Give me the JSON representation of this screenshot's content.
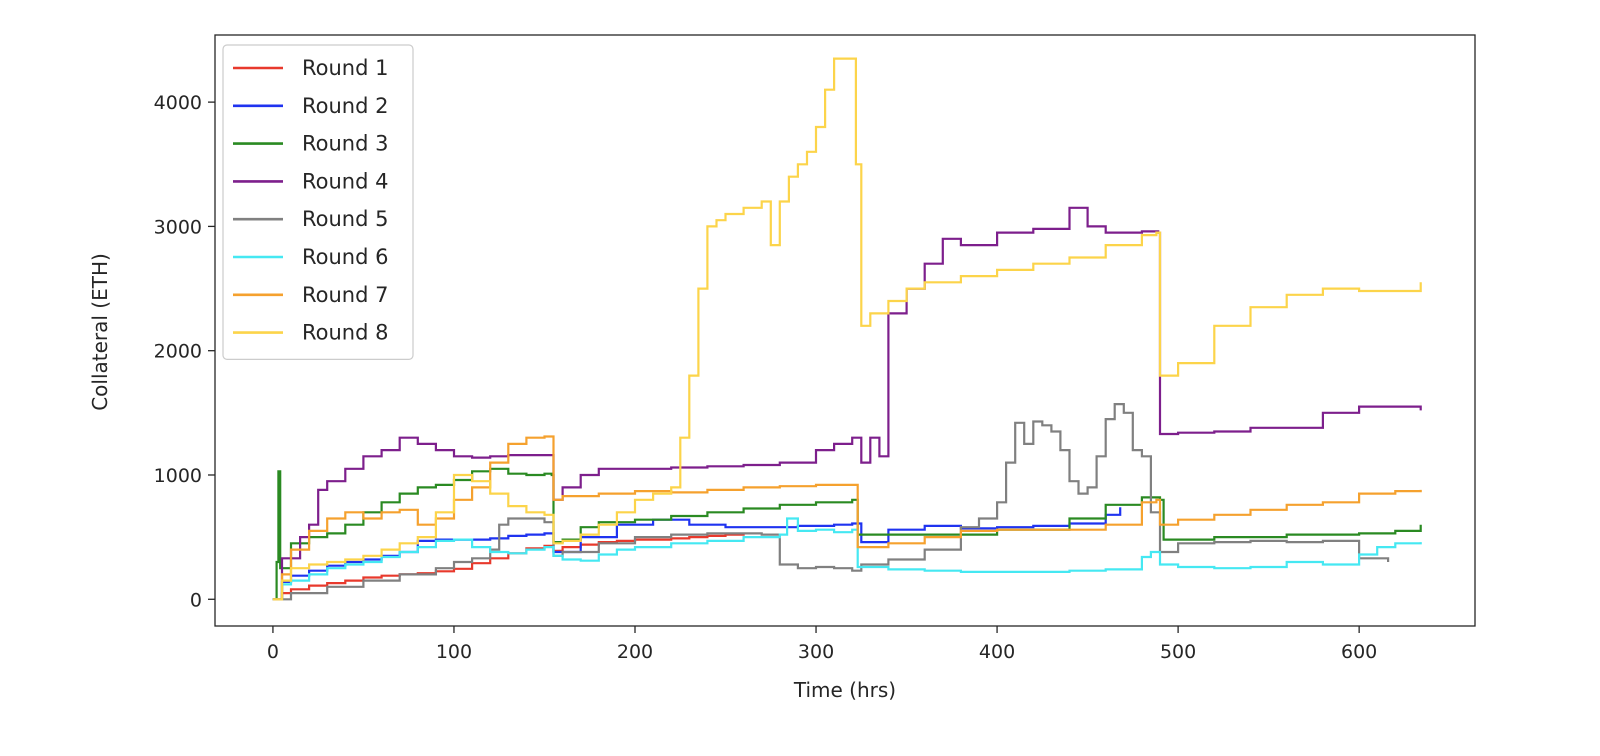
{
  "chart_data": {
    "type": "line",
    "title": "",
    "xlabel": "Time (hrs)",
    "ylabel": "Collateral (ETH)",
    "xlim": [
      -32,
      664
    ],
    "ylim": [
      -215,
      4540
    ],
    "xticks": [
      0,
      100,
      200,
      300,
      400,
      500,
      600
    ],
    "yticks": [
      0,
      1000,
      2000,
      3000,
      4000
    ],
    "grid": false,
    "legend_position": "top-left",
    "series": [
      {
        "name": "Round 1",
        "color": "#e8392c",
        "x": [
          0,
          5,
          10,
          20,
          30,
          40,
          50,
          60,
          70,
          80,
          90,
          100,
          110,
          120,
          130,
          140,
          150,
          155,
          160,
          170,
          180,
          190,
          200,
          210,
          220,
          230,
          240,
          250,
          260
        ],
        "y": [
          0,
          50,
          80,
          110,
          130,
          150,
          175,
          190,
          200,
          210,
          225,
          245,
          290,
          330,
          370,
          410,
          430,
          390,
          420,
          440,
          460,
          470,
          480,
          480,
          490,
          500,
          510,
          520,
          530
        ]
      },
      {
        "name": "Round 2",
        "color": "#1f33f0",
        "x": [
          0,
          5,
          10,
          20,
          30,
          40,
          50,
          60,
          70,
          80,
          90,
          100,
          110,
          120,
          130,
          140,
          150,
          155,
          170,
          190,
          210,
          230,
          250,
          270,
          290,
          310,
          320,
          325,
          340,
          360,
          380,
          400,
          420,
          440,
          460,
          468
        ],
        "y": [
          0,
          140,
          190,
          230,
          270,
          300,
          320,
          350,
          380,
          470,
          480,
          480,
          480,
          490,
          510,
          520,
          530,
          380,
          500,
          600,
          640,
          600,
          580,
          580,
          590,
          600,
          610,
          460,
          560,
          590,
          570,
          580,
          590,
          610,
          680,
          740
        ]
      },
      {
        "name": "Round 3",
        "color": "#2a8a22",
        "x": [
          0,
          2,
          3,
          4,
          10,
          20,
          30,
          40,
          50,
          60,
          70,
          80,
          90,
          100,
          110,
          120,
          130,
          140,
          150,
          154,
          155,
          160,
          170,
          180,
          200,
          220,
          240,
          260,
          280,
          300,
          320,
          323,
          350,
          400,
          440,
          460,
          480,
          490,
          492,
          520,
          560,
          600,
          620,
          634
        ],
        "y": [
          0,
          300,
          1030,
          250,
          450,
          500,
          530,
          600,
          700,
          780,
          850,
          900,
          920,
          960,
          1030,
          1050,
          1010,
          1000,
          1010,
          1000,
          460,
          480,
          580,
          620,
          640,
          670,
          700,
          730,
          760,
          780,
          800,
          520,
          520,
          560,
          650,
          760,
          820,
          800,
          480,
          500,
          520,
          530,
          550,
          600
        ]
      },
      {
        "name": "Round 4",
        "color": "#7d1f8c",
        "x": [
          0,
          5,
          15,
          20,
          25,
          30,
          40,
          50,
          60,
          70,
          80,
          90,
          100,
          110,
          120,
          130,
          140,
          150,
          155,
          160,
          170,
          180,
          200,
          220,
          240,
          260,
          280,
          300,
          310,
          320,
          325,
          330,
          335,
          340,
          350,
          360,
          370,
          380,
          400,
          420,
          440,
          450,
          460,
          470,
          480,
          489,
          490,
          500,
          520,
          540,
          560,
          580,
          600,
          634
        ],
        "y": [
          0,
          330,
          500,
          600,
          880,
          950,
          1050,
          1150,
          1200,
          1300,
          1250,
          1200,
          1150,
          1140,
          1150,
          1160,
          1160,
          1160,
          800,
          900,
          1000,
          1050,
          1050,
          1060,
          1070,
          1080,
          1100,
          1200,
          1250,
          1300,
          1100,
          1300,
          1150,
          2300,
          2500,
          2700,
          2900,
          2850,
          2950,
          2980,
          3150,
          3000,
          2950,
          2950,
          2960,
          2950,
          1330,
          1340,
          1350,
          1380,
          1380,
          1500,
          1550,
          1520
        ]
      },
      {
        "name": "Round 5",
        "color": "#808080",
        "x": [
          0,
          10,
          30,
          50,
          70,
          90,
          100,
          110,
          120,
          125,
          130,
          140,
          150,
          155,
          160,
          180,
          200,
          220,
          240,
          260,
          270,
          280,
          290,
          300,
          310,
          320,
          325,
          340,
          360,
          380,
          390,
          400,
          405,
          410,
          415,
          420,
          425,
          430,
          435,
          440,
          445,
          450,
          455,
          460,
          465,
          470,
          475,
          480,
          485,
          490,
          500,
          520,
          540,
          560,
          580,
          600,
          616
        ],
        "y": [
          0,
          50,
          100,
          150,
          200,
          250,
          300,
          330,
          400,
          600,
          650,
          650,
          620,
          350,
          380,
          450,
          500,
          520,
          530,
          530,
          520,
          280,
          250,
          260,
          250,
          230,
          280,
          320,
          400,
          580,
          650,
          780,
          1100,
          1420,
          1250,
          1430,
          1400,
          1350,
          1200,
          950,
          850,
          900,
          1150,
          1450,
          1570,
          1500,
          1200,
          1150,
          700,
          380,
          450,
          460,
          470,
          460,
          470,
          330,
          300
        ]
      },
      {
        "name": "Round 6",
        "color": "#45e8f2",
        "x": [
          0,
          5,
          10,
          20,
          30,
          40,
          50,
          60,
          70,
          80,
          90,
          100,
          110,
          120,
          130,
          140,
          150,
          155,
          160,
          170,
          180,
          190,
          200,
          220,
          240,
          260,
          280,
          284,
          290,
          300,
          310,
          320,
          323,
          340,
          360,
          380,
          400,
          420,
          440,
          460,
          480,
          485,
          490,
          500,
          520,
          540,
          560,
          580,
          600,
          610,
          620,
          634
        ],
        "y": [
          0,
          120,
          150,
          200,
          250,
          280,
          300,
          340,
          380,
          420,
          470,
          480,
          420,
          380,
          370,
          400,
          420,
          350,
          320,
          310,
          360,
          400,
          420,
          450,
          470,
          500,
          520,
          650,
          550,
          560,
          540,
          560,
          260,
          240,
          230,
          220,
          220,
          220,
          230,
          240,
          340,
          380,
          280,
          260,
          250,
          260,
          300,
          280,
          360,
          420,
          450,
          460
        ]
      },
      {
        "name": "Round 7",
        "color": "#f5a12e",
        "x": [
          0,
          5,
          10,
          20,
          30,
          40,
          50,
          60,
          70,
          80,
          90,
          100,
          110,
          120,
          130,
          140,
          150,
          155,
          160,
          180,
          200,
          220,
          240,
          260,
          280,
          300,
          320,
          323,
          340,
          360,
          380,
          400,
          420,
          440,
          460,
          480,
          488,
          490,
          500,
          520,
          540,
          560,
          580,
          600,
          620,
          634
        ],
        "y": [
          0,
          200,
          400,
          550,
          650,
          700,
          650,
          700,
          720,
          600,
          650,
          800,
          900,
          1100,
          1250,
          1300,
          1310,
          800,
          830,
          850,
          870,
          860,
          880,
          900,
          910,
          920,
          920,
          420,
          450,
          500,
          550,
          560,
          560,
          560,
          600,
          780,
          800,
          600,
          640,
          680,
          720,
          760,
          780,
          850,
          870,
          880
        ]
      },
      {
        "name": "Round 8",
        "color": "#fcd44a",
        "x": [
          0,
          5,
          10,
          20,
          30,
          40,
          50,
          60,
          70,
          80,
          90,
          100,
          110,
          120,
          130,
          140,
          150,
          155,
          160,
          170,
          180,
          190,
          200,
          210,
          220,
          225,
          230,
          235,
          240,
          245,
          250,
          255,
          260,
          270,
          275,
          280,
          285,
          290,
          295,
          300,
          305,
          310,
          315,
          320,
          322,
          325,
          330,
          340,
          350,
          360,
          380,
          400,
          420,
          440,
          460,
          480,
          488,
          490,
          500,
          520,
          540,
          560,
          580,
          600,
          620,
          634
        ],
        "y": [
          0,
          150,
          250,
          280,
          300,
          320,
          350,
          400,
          450,
          500,
          700,
          1000,
          950,
          850,
          750,
          700,
          680,
          450,
          470,
          520,
          600,
          700,
          800,
          850,
          900,
          1300,
          1800,
          2500,
          3000,
          3050,
          3100,
          3100,
          3150,
          3200,
          2850,
          3200,
          3400,
          3500,
          3600,
          3800,
          4100,
          4350,
          4350,
          4350,
          3500,
          2200,
          2300,
          2400,
          2500,
          2550,
          2600,
          2650,
          2700,
          2750,
          2850,
          2930,
          2950,
          1800,
          1900,
          2200,
          2350,
          2450,
          2500,
          2480,
          2480,
          2550
        ]
      }
    ]
  }
}
